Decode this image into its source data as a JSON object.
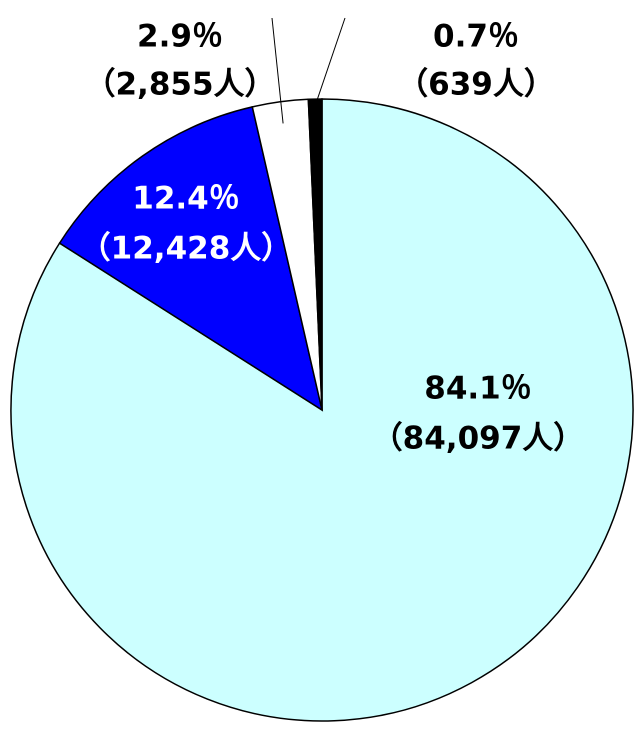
{
  "chart_data": {
    "type": "pie",
    "categories": [
      null,
      null,
      null,
      null
    ],
    "values": [
      84.1,
      12.4,
      2.9,
      0.7
    ],
    "value_labels": [
      "84.1％",
      "12.4％",
      "2.9％",
      "0.7％"
    ],
    "counts": [
      84097,
      12428,
      2855,
      639
    ],
    "count_labels": [
      "（84,097人）",
      "（12,428人）",
      "（2,855人）",
      "（639人）"
    ],
    "colors": [
      "#ccffff",
      "#0000ff",
      "#ffffff",
      "#000000"
    ],
    "label_colors": [
      "#000000",
      "#ffffff",
      "#000000",
      "#000000"
    ]
  }
}
